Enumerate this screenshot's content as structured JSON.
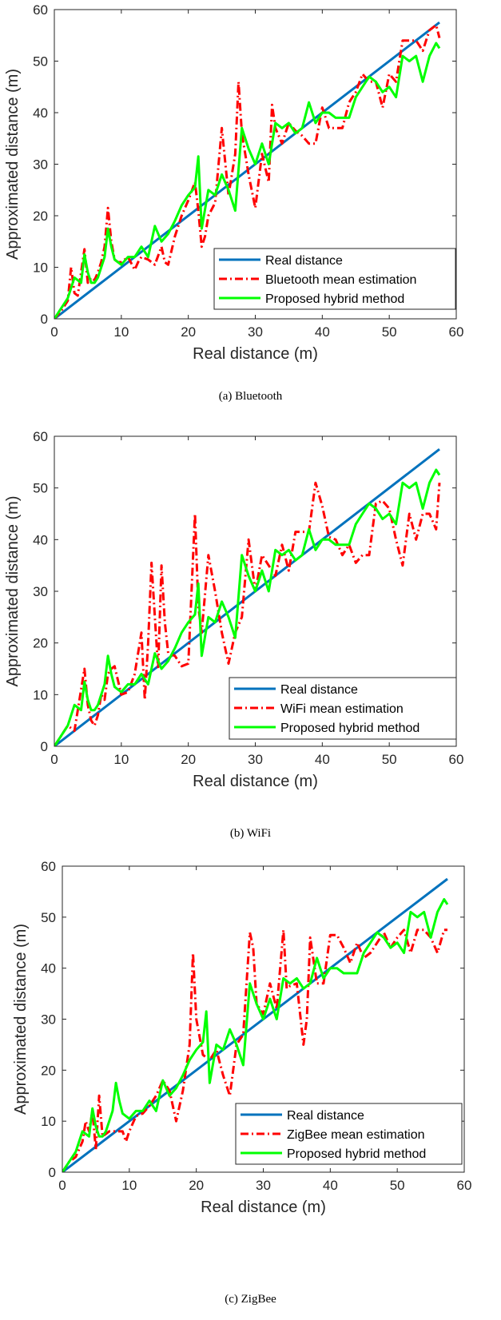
{
  "chart_data": [
    {
      "type": "line",
      "caption": "(a)  Bluetooth",
      "xlabel": "Real distance (m)",
      "ylabel": "Approximated distance (m)",
      "xlim": [
        0,
        60
      ],
      "ylim": [
        0,
        60
      ],
      "xticks": [
        0,
        10,
        20,
        30,
        40,
        50,
        60
      ],
      "yticks": [
        0,
        10,
        20,
        30,
        40,
        50,
        60
      ],
      "legend_position": "bottom-right",
      "series": [
        {
          "name": "Real distance",
          "color": "#0072BD",
          "style": "solid",
          "x": [
            0,
            57.5
          ],
          "y": [
            0,
            57.5
          ]
        },
        {
          "name": "Bluetooth mean estimation",
          "color": "#FF0000",
          "style": "dashdot",
          "x": [
            0,
            1,
            2,
            2.5,
            3,
            3.5,
            4,
            4.5,
            5,
            5.5,
            6,
            6.5,
            7,
            7.5,
            8,
            8.5,
            9,
            9.5,
            10,
            11,
            12,
            12.5,
            13,
            14,
            15,
            16,
            16.5,
            17,
            18,
            19,
            20,
            21,
            21.5,
            22,
            22.5,
            23,
            24,
            25,
            26,
            27,
            27.5,
            28,
            29,
            30,
            31,
            32,
            32.5,
            33,
            34,
            35,
            36,
            37,
            38,
            39,
            40,
            41,
            42,
            43,
            44,
            45,
            46,
            47,
            48,
            49,
            50,
            51,
            52,
            53,
            54,
            55,
            56,
            57,
            57.5
          ],
          "y": [
            0,
            1.5,
            3.5,
            10,
            5,
            4.5,
            9,
            13.5,
            7,
            8,
            7.5,
            9,
            11,
            14,
            21.5,
            15,
            11.5,
            11,
            11,
            12,
            9.5,
            11,
            12,
            11.5,
            10.5,
            14,
            11,
            10.5,
            16,
            20,
            23,
            26.5,
            21,
            14,
            16,
            20,
            22.5,
            37,
            24,
            32,
            46,
            36,
            28,
            21.5,
            32,
            26.5,
            41.5,
            37,
            34,
            38,
            36.5,
            35.5,
            34,
            34,
            41,
            37,
            37,
            37,
            42,
            44,
            47.5,
            46,
            46,
            41,
            47.5,
            46,
            54,
            54,
            54,
            52,
            56,
            57,
            54.5
          ]
        },
        {
          "name": "Proposed hybrid method",
          "color": "#00FF00",
          "style": "solid",
          "x": [
            0,
            1,
            2,
            3,
            4,
            4.5,
            5,
            5.5,
            6,
            6.5,
            7,
            7.5,
            8,
            8.5,
            9,
            9.5,
            10,
            11,
            12,
            13,
            14,
            15,
            16,
            17,
            18,
            19,
            20,
            21,
            21.5,
            22,
            23,
            24,
            25,
            26,
            27,
            28,
            29,
            30,
            31,
            32,
            33,
            34,
            35,
            36,
            37,
            38,
            39,
            40,
            41,
            42,
            43,
            44,
            45,
            46,
            47,
            48,
            49,
            50,
            51,
            52,
            53,
            54,
            55,
            56,
            57,
            57.5
          ],
          "y": [
            0,
            2,
            4,
            8,
            7,
            12.5,
            9,
            7,
            7,
            8,
            10,
            12,
            17.5,
            14,
            11.5,
            11,
            10.5,
            12,
            12,
            14,
            12,
            18,
            15,
            16.5,
            19,
            22,
            24,
            25.5,
            31.5,
            17.5,
            25,
            24,
            28,
            25,
            21,
            37,
            33,
            30,
            34,
            30,
            38,
            37,
            38,
            36,
            37,
            42,
            38,
            40,
            40,
            39,
            39,
            39,
            43,
            45,
            47,
            46,
            44,
            45,
            43,
            51,
            50,
            51,
            46,
            51,
            53.5,
            52.5
          ]
        }
      ]
    },
    {
      "type": "line",
      "caption": "(b)  WiFi",
      "xlabel": "Real distance (m)",
      "ylabel": "Approximated distance (m)",
      "xlim": [
        0,
        60
      ],
      "ylim": [
        0,
        60
      ],
      "xticks": [
        0,
        10,
        20,
        30,
        40,
        50,
        60
      ],
      "yticks": [
        0,
        10,
        20,
        30,
        40,
        50,
        60
      ],
      "legend_position": "bottom-right",
      "series": [
        {
          "name": "Real distance",
          "color": "#0072BD",
          "style": "solid",
          "x": [
            0,
            57.5
          ],
          "y": [
            0,
            57.5
          ]
        },
        {
          "name": "WiFi mean estimation",
          "color": "#FF0000",
          "style": "dashdot",
          "x": [
            0,
            1,
            2,
            3,
            4,
            4.5,
            5,
            5.5,
            6,
            6.5,
            7,
            7.5,
            8,
            8.5,
            9,
            10,
            11,
            12,
            13,
            13.5,
            14,
            14.5,
            15,
            15.5,
            16,
            16.5,
            17,
            18,
            19,
            20,
            21,
            21.5,
            22,
            23,
            24,
            25,
            26,
            27,
            28,
            29,
            30,
            31,
            32,
            33,
            34,
            35,
            36,
            37,
            38,
            39,
            40,
            41,
            42,
            43,
            44,
            45,
            46,
            47,
            48,
            49,
            50,
            51,
            52,
            53,
            54,
            55,
            56,
            57,
            57.5
          ],
          "y": [
            0,
            2,
            4,
            3,
            11,
            15,
            8,
            5,
            4,
            6,
            10,
            9,
            14,
            15,
            15.5,
            10,
            10.5,
            14,
            22,
            9,
            20,
            35.5,
            25,
            15,
            35,
            24,
            18,
            17.5,
            15.5,
            16,
            45,
            27,
            22,
            37,
            30,
            22,
            16,
            22,
            25,
            40,
            30,
            37,
            35,
            33,
            39,
            34,
            41.5,
            41.5,
            41.5,
            51,
            46.5,
            40.5,
            40,
            37,
            39,
            35.5,
            37,
            37,
            47,
            47.5,
            46,
            40,
            35,
            45,
            40,
            45,
            45,
            42,
            51
          ]
        },
        {
          "name": "Proposed hybrid method",
          "color": "#00FF00",
          "style": "solid",
          "x": [
            0,
            1,
            2,
            3,
            4,
            4.5,
            5,
            5.5,
            6,
            6.5,
            7,
            7.5,
            8,
            8.5,
            9,
            9.5,
            10,
            11,
            12,
            13,
            14,
            15,
            16,
            17,
            18,
            19,
            20,
            21,
            21.5,
            22,
            23,
            24,
            25,
            26,
            27,
            28,
            29,
            30,
            31,
            32,
            33,
            34,
            35,
            36,
            37,
            38,
            39,
            40,
            41,
            42,
            43,
            44,
            45,
            46,
            47,
            48,
            49,
            50,
            51,
            52,
            53,
            54,
            55,
            56,
            57,
            57.5
          ],
          "y": [
            0,
            2,
            4,
            8,
            7,
            12.5,
            9,
            7,
            7,
            8,
            10,
            12,
            17.5,
            14,
            11.5,
            11,
            10.5,
            12,
            12,
            14,
            12,
            18,
            15,
            16.5,
            19,
            22,
            24,
            25.5,
            31.5,
            17.5,
            25,
            24,
            28,
            25,
            21,
            37,
            33,
            30,
            34,
            30,
            38,
            37,
            38,
            36,
            37,
            42,
            38,
            40,
            40,
            39,
            39,
            39,
            43,
            45,
            47,
            46,
            44,
            45,
            43,
            51,
            50,
            51,
            46,
            51,
            53.5,
            52.5
          ]
        }
      ]
    },
    {
      "type": "line",
      "caption": "(c)  ZigBee",
      "xlabel": "Real distance (m)",
      "ylabel": "Approximated distance (m)",
      "xlim": [
        0,
        60
      ],
      "ylim": [
        0,
        60
      ],
      "xticks": [
        0,
        10,
        20,
        30,
        40,
        50,
        60
      ],
      "yticks": [
        0,
        10,
        20,
        30,
        40,
        50,
        60
      ],
      "legend_position": "bottom-right",
      "series": [
        {
          "name": "Real distance",
          "color": "#0072BD",
          "style": "solid",
          "x": [
            0,
            57.5
          ],
          "y": [
            0,
            57.5
          ]
        },
        {
          "name": "ZigBee mean estimation",
          "color": "#FF0000",
          "style": "dashdot",
          "x": [
            0,
            1,
            2,
            3,
            3.5,
            4,
            4.5,
            5,
            5.5,
            6,
            7,
            8,
            9,
            9.5,
            10,
            11,
            12,
            13,
            14,
            15,
            16,
            17,
            18,
            19,
            19.5,
            20,
            21,
            22,
            23,
            24,
            25,
            26,
            27,
            28,
            28.5,
            29,
            30,
            31,
            32,
            33,
            33.5,
            34,
            35,
            36,
            36.5,
            37,
            38,
            39,
            40,
            41,
            42,
            43,
            44,
            45,
            46,
            47,
            48,
            49,
            50,
            51,
            52,
            53,
            54,
            55,
            56,
            57,
            57.5
          ],
          "y": [
            0,
            2,
            3,
            6,
            10,
            8,
            12,
            4.5,
            15,
            7,
            8,
            8,
            8,
            6,
            8,
            11,
            11.5,
            13,
            15,
            18,
            16,
            10,
            16,
            25,
            43,
            30,
            23,
            22,
            24,
            19,
            15,
            25,
            27,
            47,
            44,
            33,
            31,
            37,
            32,
            47.5,
            36,
            36.5,
            37,
            25,
            30,
            46,
            37,
            37,
            46.5,
            46.5,
            44,
            41,
            45,
            42,
            43,
            45,
            47,
            44,
            46,
            47.5,
            43,
            47.5,
            47.5,
            46,
            43,
            47.5,
            47.5
          ]
        },
        {
          "name": "Proposed hybrid method",
          "color": "#00FF00",
          "style": "solid",
          "x": [
            0,
            1,
            2,
            3,
            4,
            4.5,
            5,
            5.5,
            6,
            6.5,
            7,
            7.5,
            8,
            8.5,
            9,
            9.5,
            10,
            11,
            12,
            13,
            14,
            15,
            16,
            17,
            18,
            19,
            20,
            21,
            21.5,
            22,
            23,
            24,
            25,
            26,
            27,
            28,
            29,
            30,
            31,
            32,
            33,
            34,
            35,
            36,
            37,
            38,
            39,
            40,
            41,
            42,
            43,
            44,
            45,
            46,
            47,
            48,
            49,
            50,
            51,
            52,
            53,
            54,
            55,
            56,
            57,
            57.5
          ],
          "y": [
            0,
            2,
            4,
            8,
            7,
            12.5,
            9,
            7,
            7,
            8,
            10,
            12,
            17.5,
            14,
            11.5,
            11,
            10.5,
            12,
            12,
            14,
            12,
            18,
            15,
            16.5,
            19,
            22,
            24,
            25.5,
            31.5,
            17.5,
            25,
            24,
            28,
            25,
            21,
            37,
            33,
            30,
            34,
            30,
            38,
            37,
            38,
            36,
            37,
            42,
            38,
            40,
            40,
            39,
            39,
            39,
            43,
            45,
            47,
            46,
            44,
            45,
            43,
            51,
            50,
            51,
            46,
            51,
            53.5,
            52.5
          ]
        }
      ]
    }
  ]
}
